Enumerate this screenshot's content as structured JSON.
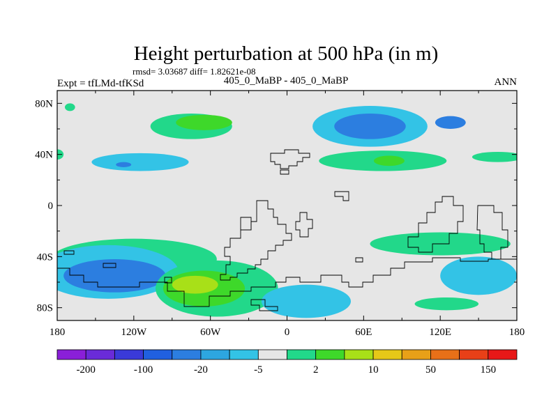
{
  "chart_data": {
    "type": "heatmap",
    "title": "Height perturbation at 500 hPa (in m)",
    "subtitle": "rmsd= 3.03687 diff= 1.82621e-08",
    "left_label": "Expt = tfLMd-tfKSd",
    "center_label": "405_0_MaBP - 405_0_MaBP",
    "right_label": "ANN",
    "xlim": [
      -180,
      180
    ],
    "ylim": [
      -90,
      90
    ],
    "x_ticks": [
      {
        "value": -180,
        "label": "180"
      },
      {
        "value": -120,
        "label": "120W"
      },
      {
        "value": -60,
        "label": "60W"
      },
      {
        "value": 0,
        "label": "0"
      },
      {
        "value": 60,
        "label": "60E"
      },
      {
        "value": 120,
        "label": "120E"
      },
      {
        "value": 180,
        "label": "180"
      }
    ],
    "y_ticks": [
      {
        "value": 80,
        "label": "80N"
      },
      {
        "value": 40,
        "label": "40N"
      },
      {
        "value": 0,
        "label": "0"
      },
      {
        "value": -40,
        "label": "40S"
      },
      {
        "value": -80,
        "label": "80S"
      }
    ],
    "colorbar": {
      "colors": [
        "#8a1fd8",
        "#6a2bd8",
        "#3a3ad8",
        "#2060e0",
        "#2c7ee0",
        "#2da6e0",
        "#33c3e6",
        "#e6e6e6",
        "#22d88a",
        "#3ed82a",
        "#a8e018",
        "#e6c818",
        "#e8a018",
        "#e87018",
        "#e84018",
        "#e81818"
      ],
      "labels": [
        {
          "after_index": 0,
          "text": "-200"
        },
        {
          "after_index": 2,
          "text": "-100"
        },
        {
          "after_index": 4,
          "text": "-20"
        },
        {
          "after_index": 6,
          "text": "-5"
        },
        {
          "after_index": 8,
          "text": "2"
        },
        {
          "after_index": 10,
          "text": "10"
        },
        {
          "after_index": 12,
          "text": "50"
        },
        {
          "after_index": 14,
          "text": "150"
        }
      ]
    },
    "anomaly_regions": [
      {
        "level": "5",
        "lon": -75,
        "lat": 62,
        "rlon": 32,
        "rlat": 10
      },
      {
        "level": "10",
        "lon": -65,
        "lat": 65,
        "rlon": 22,
        "rlat": 6
      },
      {
        "level": "-5",
        "lon": -115,
        "lat": 34,
        "rlon": 38,
        "rlat": 7
      },
      {
        "level": "-20",
        "lon": -128,
        "lat": 32,
        "rlon": 6,
        "rlat": 2
      },
      {
        "level": "5",
        "lon": -170,
        "lat": 77,
        "rlon": 4,
        "rlat": 3
      },
      {
        "level": "5",
        "lon": -180,
        "lat": 40,
        "rlon": 5,
        "rlat": 4
      },
      {
        "level": "-5",
        "lon": 65,
        "lat": 62,
        "rlon": 45,
        "rlat": 16
      },
      {
        "level": "-20",
        "lon": 65,
        "lat": 62,
        "rlon": 28,
        "rlat": 10
      },
      {
        "level": "-20",
        "lon": 128,
        "lat": 65,
        "rlon": 12,
        "rlat": 5
      },
      {
        "level": "5",
        "lon": 75,
        "lat": 35,
        "rlon": 50,
        "rlat": 8
      },
      {
        "level": "10",
        "lon": 80,
        "lat": 35,
        "rlon": 12,
        "rlat": 4
      },
      {
        "level": "5",
        "lon": 165,
        "lat": 38,
        "rlon": 20,
        "rlat": 4
      },
      {
        "level": "5",
        "lon": -120,
        "lat": -42,
        "rlon": 65,
        "rlat": 16
      },
      {
        "level": "-5",
        "lon": -140,
        "lat": -52,
        "rlon": 55,
        "rlat": 21
      },
      {
        "level": "-20",
        "lon": -135,
        "lat": -55,
        "rlon": 40,
        "rlat": 13
      },
      {
        "level": "5",
        "lon": -55,
        "lat": -65,
        "rlon": 48,
        "rlat": 22
      },
      {
        "level": "10",
        "lon": -65,
        "lat": -65,
        "rlon": 32,
        "rlat": 14
      },
      {
        "level": "20",
        "lon": -72,
        "lat": -62,
        "rlon": 18,
        "rlat": 7
      },
      {
        "level": "-5",
        "lon": 15,
        "lat": -75,
        "rlon": 35,
        "rlat": 13
      },
      {
        "level": "5",
        "lon": 120,
        "lat": -30,
        "rlon": 55,
        "rlat": 9
      },
      {
        "level": "-5",
        "lon": 150,
        "lat": -55,
        "rlon": 30,
        "rlat": 15
      },
      {
        "level": "5",
        "lon": 125,
        "lat": -77,
        "rlon": 25,
        "rlat": 5
      }
    ]
  }
}
